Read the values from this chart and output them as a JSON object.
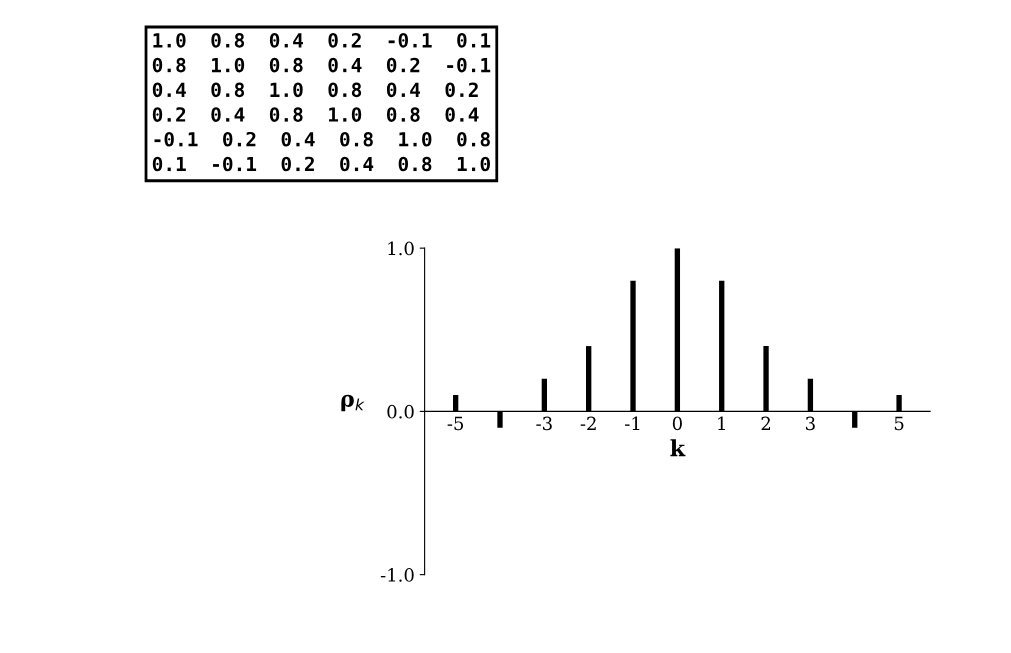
{
  "chart_data": {
    "type": "bar",
    "xlabel": "k",
    "ylabel": "ρ$_{k}$",
    "categories": [
      "-5",
      null,
      "-3",
      "-2",
      "-1",
      "0",
      "1",
      "2",
      "3",
      null,
      "5"
    ],
    "values": [
      0.1,
      -0.1,
      0.2,
      0.4,
      0.8,
      1.0,
      0.8,
      0.4,
      0.2,
      -0.1,
      0.1
    ],
    "color": "#000000",
    "ylim": [
      -1.0,
      1.0
    ],
    "yticks": [
      {
        "value": -1.0,
        "label": "-1.0"
      },
      {
        "value": 0.0,
        "label": "0.0"
      },
      {
        "value": 1.0,
        "label": "1.0"
      }
    ],
    "grid": false,
    "annotations": [
      "1.0  0.8  0.4  0.2  -0.1  0.1\n0.8  1.0  0.8  0.4  0.2  -0.1\n0.4  0.8  1.0  0.8  0.4  0.2\n0.2  0.4  0.8  1.0  0.8  0.4\n-0.1  0.2  0.4  0.8  1.0  0.8\n0.1  -0.1  0.2  0.4  0.8  1.0"
    ]
  }
}
